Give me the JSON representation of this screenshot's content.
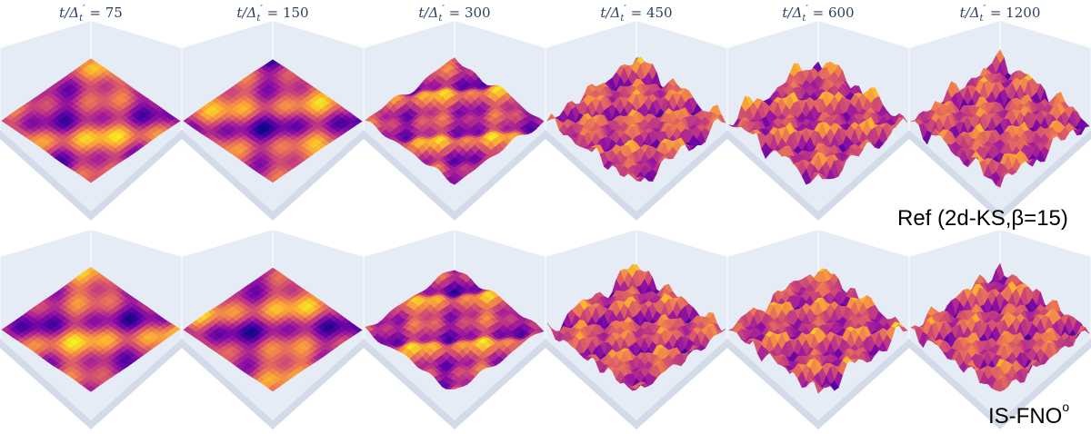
{
  "columns": [
    {
      "var": "t/Δ",
      "sub": "t",
      "prime": "′",
      "value": "75"
    },
    {
      "var": "t/Δ",
      "sub": "t",
      "prime": "′",
      "value": "150"
    },
    {
      "var": "t/Δ",
      "sub": "t",
      "prime": "′",
      "value": "300"
    },
    {
      "var": "t/Δ",
      "sub": "t",
      "prime": "′",
      "value": "450"
    },
    {
      "var": "t/Δ",
      "sub": "t",
      "prime": "′",
      "value": "600"
    },
    {
      "var": "t/Δ",
      "sub": "t",
      "prime": "′",
      "value": "1200"
    }
  ],
  "rows": [
    {
      "label": "Ref (2d-KS,β=15)",
      "label_sup": ""
    },
    {
      "label": "IS-FNO",
      "label_sup": "o"
    }
  ],
  "colors": {
    "scene_background": "#e5ecf6",
    "gridline": "#ffffff",
    "colormap": [
      "#0d0887",
      "#5c01a6",
      "#9c179e",
      "#cc4778",
      "#ed7953",
      "#fdb42f",
      "#f0f921"
    ]
  },
  "surface_amplitude_level": [
    0.05,
    0.05,
    0.35,
    0.8,
    0.85,
    0.9
  ]
}
